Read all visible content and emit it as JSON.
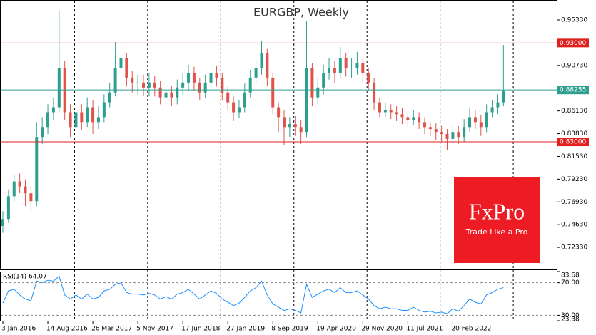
{
  "chart_data": {
    "type": "candlestick",
    "title": "EURGBP, Weekly",
    "categories": [
      "3 Jan 2016",
      null,
      null,
      null,
      null,
      null,
      null,
      null,
      "14 Aug 2016",
      null,
      null,
      null,
      null,
      null,
      null,
      null,
      "26 Mar 2017",
      null,
      null,
      null,
      null,
      null,
      null,
      null,
      "5 Nov 2017",
      null,
      null,
      null,
      null,
      null,
      null,
      null,
      "17 Jun 2018",
      null,
      null,
      null,
      null,
      null,
      null,
      null,
      "27 Jan 2019",
      null,
      null,
      null,
      null,
      null,
      null,
      null,
      "8 Sep 2019",
      null,
      null,
      null,
      null,
      null,
      null,
      null,
      "19 Apr 2020",
      null,
      null,
      null,
      null,
      null,
      null,
      null,
      "29 Nov 2020",
      null,
      null,
      null,
      null,
      null,
      null,
      null,
      "11 Jul 2021",
      null,
      null,
      null,
      null,
      null,
      null,
      null,
      "20 Feb 2022",
      null,
      null,
      null,
      null,
      null,
      null,
      null,
      null,
      null
    ],
    "open": [
      0.745,
      0.752,
      0.775,
      0.79,
      0.785,
      0.778,
      0.77,
      0.835,
      0.845,
      0.86,
      0.865,
      0.905,
      0.86,
      0.845,
      0.86,
      0.85,
      0.865,
      0.85,
      0.855,
      0.87,
      0.88,
      0.905,
      0.915,
      0.895,
      0.89,
      0.89,
      0.885,
      0.89,
      0.885,
      0.875,
      0.88,
      0.875,
      0.885,
      0.89,
      0.9,
      0.89,
      0.88,
      0.89,
      0.9,
      0.895,
      0.88,
      0.87,
      0.86,
      0.865,
      0.88,
      0.895,
      0.905,
      0.92,
      0.895,
      0.865,
      0.855,
      0.845,
      0.848,
      0.845,
      0.84,
      0.905,
      0.875,
      0.885,
      0.9,
      0.905,
      0.9,
      0.915,
      0.905,
      0.905,
      0.91,
      0.9,
      0.89,
      0.87,
      0.86,
      0.862,
      0.86,
      0.858,
      0.855,
      0.852,
      0.855,
      0.85,
      0.845,
      0.843,
      0.84,
      0.838,
      0.833,
      0.84,
      0.835,
      0.845,
      0.855,
      0.85,
      0.845,
      0.86,
      0.865,
      0.87
    ],
    "high": [
      0.76,
      0.782,
      0.797,
      0.798,
      0.792,
      0.785,
      0.85,
      0.855,
      0.868,
      0.875,
      0.963,
      0.912,
      0.868,
      0.872,
      0.868,
      0.875,
      0.872,
      0.866,
      0.878,
      0.89,
      0.931,
      0.928,
      0.92,
      0.902,
      0.898,
      0.898,
      0.9,
      0.897,
      0.892,
      0.888,
      0.887,
      0.893,
      0.9,
      0.908,
      0.906,
      0.895,
      0.898,
      0.91,
      0.907,
      0.9,
      0.886,
      0.876,
      0.872,
      0.889,
      0.903,
      0.912,
      0.932,
      0.924,
      0.9,
      0.87,
      0.862,
      0.855,
      0.856,
      0.852,
      0.952,
      0.91,
      0.895,
      0.908,
      0.915,
      0.912,
      0.926,
      0.92,
      0.915,
      0.921,
      0.915,
      0.905,
      0.895,
      0.875,
      0.87,
      0.868,
      0.866,
      0.864,
      0.86,
      0.862,
      0.86,
      0.855,
      0.85,
      0.849,
      0.846,
      0.843,
      0.848,
      0.846,
      0.853,
      0.865,
      0.862,
      0.857,
      0.868,
      0.872,
      0.878,
      0.928
    ],
    "low": [
      0.738,
      0.748,
      0.77,
      0.778,
      0.765,
      0.758,
      0.765,
      0.828,
      0.838,
      0.852,
      0.86,
      0.852,
      0.835,
      0.838,
      0.842,
      0.845,
      0.838,
      0.843,
      0.85,
      0.865,
      0.876,
      0.898,
      0.886,
      0.88,
      0.878,
      0.876,
      0.876,
      0.876,
      0.868,
      0.866,
      0.866,
      0.868,
      0.878,
      0.882,
      0.882,
      0.872,
      0.874,
      0.884,
      0.886,
      0.872,
      0.862,
      0.851,
      0.854,
      0.86,
      0.875,
      0.888,
      0.898,
      0.887,
      0.858,
      0.84,
      0.827,
      0.835,
      0.836,
      0.828,
      0.835,
      0.866,
      0.868,
      0.878,
      0.893,
      0.89,
      0.895,
      0.896,
      0.895,
      0.898,
      0.89,
      0.882,
      0.862,
      0.855,
      0.855,
      0.853,
      0.851,
      0.848,
      0.846,
      0.847,
      0.843,
      0.838,
      0.836,
      0.832,
      0.83,
      0.822,
      0.826,
      0.828,
      0.83,
      0.84,
      0.843,
      0.836,
      0.84,
      0.855,
      0.858,
      0.866
    ],
    "close": [
      0.752,
      0.775,
      0.79,
      0.785,
      0.778,
      0.77,
      0.835,
      0.845,
      0.86,
      0.865,
      0.905,
      0.86,
      0.845,
      0.86,
      0.85,
      0.865,
      0.85,
      0.855,
      0.87,
      0.88,
      0.905,
      0.915,
      0.895,
      0.89,
      0.89,
      0.885,
      0.89,
      0.885,
      0.875,
      0.88,
      0.875,
      0.885,
      0.89,
      0.9,
      0.89,
      0.88,
      0.89,
      0.9,
      0.895,
      0.88,
      0.87,
      0.86,
      0.865,
      0.88,
      0.895,
      0.905,
      0.92,
      0.895,
      0.865,
      0.855,
      0.845,
      0.848,
      0.845,
      0.84,
      0.905,
      0.875,
      0.885,
      0.9,
      0.905,
      0.9,
      0.915,
      0.905,
      0.905,
      0.91,
      0.9,
      0.89,
      0.87,
      0.86,
      0.862,
      0.86,
      0.858,
      0.855,
      0.852,
      0.855,
      0.85,
      0.845,
      0.843,
      0.84,
      0.838,
      0.833,
      0.84,
      0.835,
      0.845,
      0.855,
      0.85,
      0.845,
      0.86,
      0.865,
      0.87,
      0.882
    ],
    "up_color": "#2e9e8f",
    "down_color": "#e0534a",
    "ylim": [
      0.701,
      0.9735
    ],
    "yticks": [
      {
        "value": 0.9533,
        "label": "0.95330"
      },
      {
        "value": 0.9073,
        "label": "0.90730"
      },
      {
        "value": 0.8613,
        "label": "0.86130"
      },
      {
        "value": 0.8383,
        "label": "0.83830"
      },
      {
        "value": 0.8153,
        "label": "0.81530"
      },
      {
        "value": 0.7923,
        "label": "0.79230"
      },
      {
        "value": 0.7693,
        "label": "0.76930"
      },
      {
        "value": 0.7463,
        "label": "0.74630"
      },
      {
        "value": 0.7233,
        "label": "0.72330"
      }
    ],
    "levels": [
      {
        "value": 0.93,
        "label": "0.93000",
        "color": "#e02020"
      },
      {
        "value": 0.88255,
        "label": "0.88255",
        "color": "#2e9e8f"
      },
      {
        "value": 0.83,
        "label": "0.83000",
        "color": "#e02020"
      }
    ],
    "rsi": {
      "label": "RSI(14) 64.07",
      "color": "#1e90ff",
      "values": [
        45,
        60,
        62,
        55,
        50,
        48,
        72,
        70,
        73,
        72,
        78,
        55,
        50,
        55,
        50,
        56,
        50,
        52,
        60,
        62,
        68,
        70,
        58,
        56,
        56,
        55,
        57,
        55,
        50,
        53,
        50,
        56,
        58,
        62,
        56,
        50,
        55,
        60,
        57,
        50,
        46,
        42,
        45,
        52,
        60,
        64,
        72,
        55,
        44,
        40,
        36,
        38,
        36,
        33,
        68,
        52,
        56,
        60,
        62,
        58,
        64,
        58,
        58,
        60,
        55,
        50,
        42,
        38,
        40,
        38,
        38,
        36,
        36,
        40,
        36,
        34,
        35,
        33,
        34,
        32,
        38,
        35,
        42,
        50,
        46,
        44,
        55,
        58,
        62,
        64.07
      ],
      "ylim": [
        23.38,
        83.68
      ],
      "yticks": [
        83.68,
        {
          "value": 70,
          "label": "70.00"
        },
        {
          "value": 30,
          "label": "30.00"
        },
        23.38
      ]
    }
  },
  "logo": {
    "brand": "FxPro",
    "tagline": "Trade Like a Pro"
  }
}
